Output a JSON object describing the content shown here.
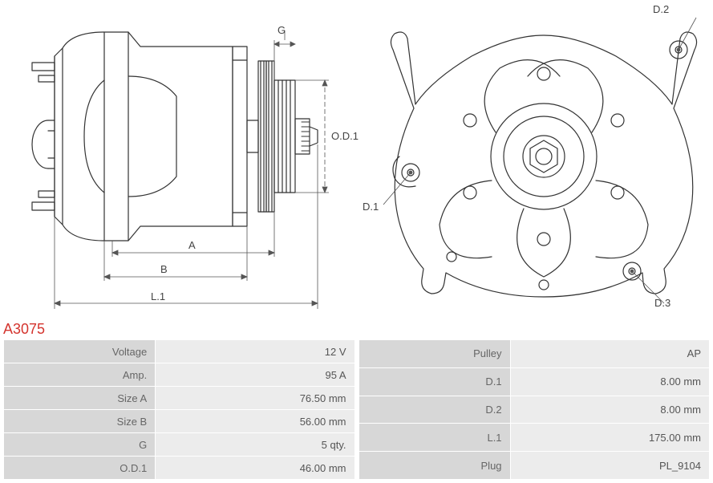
{
  "part_number": "A3075",
  "diagram": {
    "stroke": "#333333",
    "stroke_width": 1.2,
    "dim_stroke": "#555555",
    "dim_width": 0.8,
    "labels": {
      "G": "G",
      "OD1": "O.D.1",
      "A": "A",
      "B": "B",
      "L1": "L.1",
      "D1": "D.1",
      "D2": "D.2",
      "D3": "D.3"
    }
  },
  "specs_left": [
    {
      "label": "Voltage",
      "value": "12 V"
    },
    {
      "label": "Amp.",
      "value": "95 A"
    },
    {
      "label": "Size A",
      "value": "76.50 mm"
    },
    {
      "label": "Size B",
      "value": "56.00 mm"
    },
    {
      "label": "G",
      "value": "5 qty."
    },
    {
      "label": "O.D.1",
      "value": "46.00 mm"
    }
  ],
  "specs_right": [
    {
      "label": "Pulley",
      "value": "AP"
    },
    {
      "label": "D.1",
      "value": "8.00 mm"
    },
    {
      "label": "D.2",
      "value": "8.00 mm"
    },
    {
      "label": "L.1",
      "value": "175.00 mm"
    },
    {
      "label": "Plug",
      "value": "PL_9104"
    }
  ],
  "colors": {
    "label_bg": "#d7d7d7",
    "value_bg": "#ececec",
    "part_no": "#d4342e"
  }
}
